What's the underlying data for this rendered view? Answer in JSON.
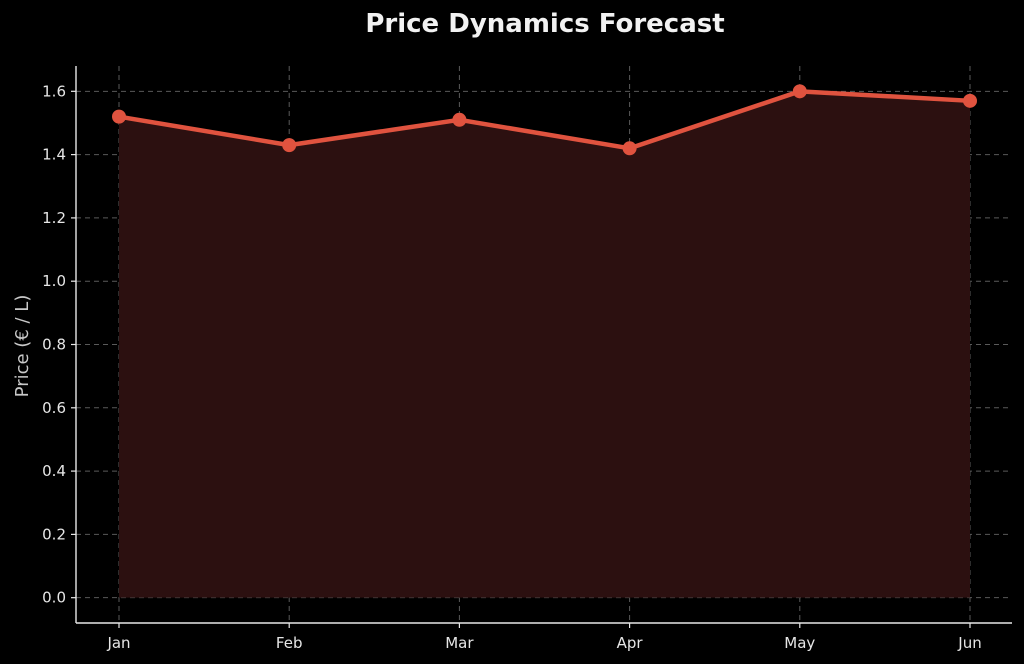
{
  "chart_data": {
    "type": "area",
    "title": "Price Dynamics Forecast",
    "xlabel": "",
    "ylabel": "Price (€ / L)",
    "categories": [
      "Jan",
      "Feb",
      "Mar",
      "Apr",
      "May",
      "Jun"
    ],
    "series": [
      {
        "values": [
          1.52,
          1.43,
          1.51,
          1.42,
          1.6,
          1.57
        ]
      }
    ],
    "ylim": [
      -0.08,
      1.68
    ],
    "yticks": [
      0.0,
      0.2,
      0.4,
      0.6,
      0.8,
      1.0,
      1.2,
      1.4,
      1.6
    ],
    "ytick_labels": [
      "0.0",
      "0.2",
      "0.4",
      "0.6",
      "0.8",
      "1.0",
      "1.2",
      "1.4",
      "1.6"
    ],
    "grid": true,
    "legend": "none",
    "colors": {
      "background": "#000000",
      "line": "#e0533f",
      "marker": "#e0533f",
      "fill": "#2c1010",
      "grid": "#5a5a5a",
      "axis": "#e8e8e8",
      "title": "#f2f2f2",
      "ylabel": "#c8c8c8",
      "ticks": "#e6e6e6"
    }
  }
}
